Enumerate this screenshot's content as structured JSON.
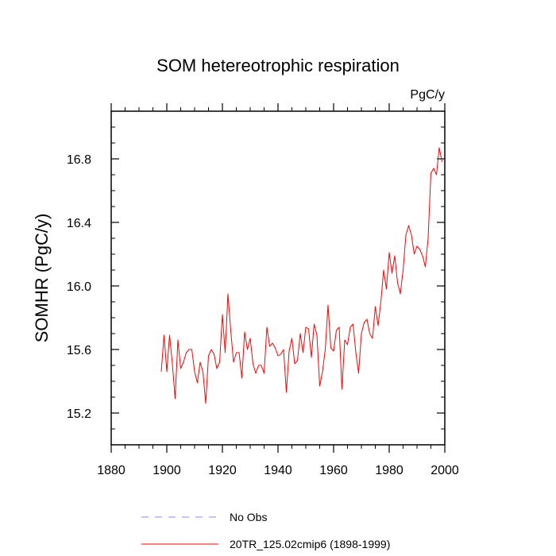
{
  "chart_data": {
    "type": "line",
    "title": "SOM hetereotrophic respiration",
    "units": "PgC/y",
    "xlabel": "",
    "ylabel": "SOMHR  (PgC/y)",
    "xlim": [
      1880,
      2000
    ],
    "ylim": [
      15.0,
      17.1
    ],
    "x_ticks": [
      1880,
      1900,
      1920,
      1940,
      1960,
      1980,
      2000
    ],
    "y_ticks": [
      15.2,
      15.6,
      16.0,
      16.4,
      16.8
    ],
    "y_tick_labels": [
      "15.2",
      "15.6",
      "16.0",
      "16.4",
      "16.8"
    ],
    "x_minor_step": 5,
    "y_minor_step": 0.1,
    "series": [
      {
        "name": "20TR_125.02cmip6 (1898-1999)",
        "color": "#ff0000",
        "style": "solid",
        "x": [
          1898,
          1899,
          1900,
          1901,
          1902,
          1903,
          1904,
          1905,
          1906,
          1907,
          1908,
          1909,
          1910,
          1911,
          1912,
          1913,
          1914,
          1915,
          1916,
          1917,
          1918,
          1919,
          1920,
          1921,
          1922,
          1923,
          1924,
          1925,
          1926,
          1927,
          1928,
          1929,
          1930,
          1931,
          1932,
          1933,
          1934,
          1935,
          1936,
          1937,
          1938,
          1939,
          1940,
          1941,
          1942,
          1943,
          1944,
          1945,
          1946,
          1947,
          1948,
          1949,
          1950,
          1951,
          1952,
          1953,
          1954,
          1955,
          1956,
          1957,
          1958,
          1959,
          1960,
          1961,
          1962,
          1963,
          1964,
          1965,
          1966,
          1967,
          1968,
          1969,
          1970,
          1971,
          1972,
          1973,
          1974,
          1975,
          1976,
          1977,
          1978,
          1979,
          1980,
          1981,
          1982,
          1983,
          1984,
          1985,
          1986,
          1987,
          1988,
          1989,
          1990,
          1991,
          1992,
          1993,
          1994,
          1995,
          1996,
          1997,
          1998,
          1999
        ],
        "values": [
          15.46,
          15.69,
          15.46,
          15.69,
          15.51,
          15.29,
          15.66,
          15.48,
          15.52,
          15.58,
          15.6,
          15.6,
          15.46,
          15.39,
          15.52,
          15.46,
          15.26,
          15.56,
          15.6,
          15.57,
          15.48,
          15.52,
          15.82,
          15.58,
          15.95,
          15.72,
          15.52,
          15.58,
          15.58,
          15.42,
          15.71,
          15.6,
          15.67,
          15.51,
          15.45,
          15.5,
          15.5,
          15.45,
          15.74,
          15.62,
          15.64,
          15.61,
          15.56,
          15.57,
          15.6,
          15.33,
          15.59,
          15.67,
          15.51,
          15.53,
          15.7,
          15.58,
          15.74,
          15.73,
          15.55,
          15.76,
          15.69,
          15.37,
          15.46,
          15.6,
          15.88,
          15.61,
          15.59,
          15.72,
          15.74,
          15.35,
          15.66,
          15.63,
          15.74,
          15.76,
          15.58,
          15.45,
          15.7,
          15.77,
          15.79,
          15.7,
          15.67,
          15.87,
          15.75,
          15.9,
          16.1,
          15.98,
          16.21,
          16.08,
          16.19,
          16.02,
          15.95,
          16.1,
          16.32,
          16.38,
          16.32,
          16.2,
          16.25,
          16.23,
          16.19,
          16.12,
          16.3,
          16.71,
          16.74,
          16.7,
          16.87,
          16.78
        ]
      }
    ],
    "legend": {
      "position": "bottom",
      "entries": [
        {
          "label": "No Obs",
          "color": "#8888ff",
          "style": "dashed"
        },
        {
          "label": "20TR_125.02cmip6 (1898-1999)",
          "color": "#ff0000",
          "style": "solid"
        }
      ]
    }
  }
}
